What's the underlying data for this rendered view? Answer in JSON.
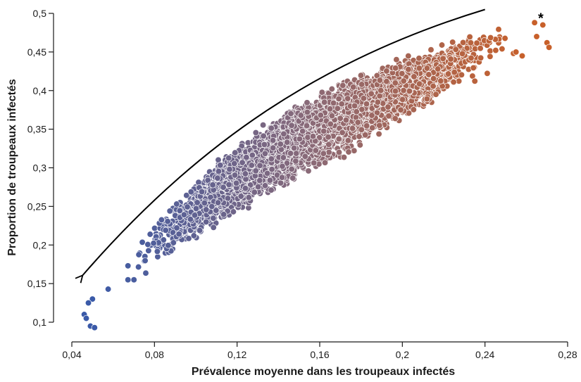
{
  "chart_data": {
    "type": "scatter",
    "xlabel": "Prévalence moyenne dans les troupeaux infectés",
    "ylabel": "Proportion de troupeaux infectés",
    "xlim": [
      0.04,
      0.28
    ],
    "ylim": [
      0.1,
      0.5
    ],
    "x_ticks": [
      "0,04",
      "0,08",
      "0,12",
      "0,16",
      "0,2",
      "0,24",
      "0,28"
    ],
    "x_tick_values": [
      0.04,
      0.08,
      0.12,
      0.16,
      0.2,
      0.24,
      0.28
    ],
    "y_ticks": [
      "0,1",
      "0,15",
      "0,2",
      "0,25",
      "0,3",
      "0,35",
      "0,4",
      "0,45",
      "0,5"
    ],
    "y_tick_values": [
      0.1,
      0.15,
      0.2,
      0.25,
      0.3,
      0.35,
      0.4,
      0.45,
      0.5
    ],
    "annotation": "*",
    "annotation_point": [
      0.267,
      0.497
    ],
    "color_low": "#3a5aa8",
    "color_high": "#c8602a",
    "grid": false,
    "legend": "none",
    "arrow": {
      "direction": "from upper right to lower left, following the point cloud",
      "path": [
        [
          0.24,
          0.505
        ],
        [
          0.16,
          0.44
        ],
        [
          0.1,
          0.33
        ],
        [
          0.045,
          0.16
        ]
      ]
    },
    "cloud": {
      "description": "dense scatter cloud, y increases concavely with x",
      "x_range": [
        0.045,
        0.271
      ],
      "centre": [
        [
          0.05,
          0.125
        ],
        [
          0.06,
          0.155
        ],
        [
          0.08,
          0.205
        ],
        [
          0.1,
          0.25
        ],
        [
          0.12,
          0.29
        ],
        [
          0.14,
          0.325
        ],
        [
          0.16,
          0.355
        ],
        [
          0.18,
          0.385
        ],
        [
          0.2,
          0.41
        ],
        [
          0.22,
          0.435
        ],
        [
          0.24,
          0.46
        ],
        [
          0.26,
          0.475
        ]
      ],
      "upper": [
        [
          0.05,
          0.15
        ],
        [
          0.06,
          0.18
        ],
        [
          0.08,
          0.24
        ],
        [
          0.1,
          0.29
        ],
        [
          0.12,
          0.335
        ],
        [
          0.14,
          0.37
        ],
        [
          0.16,
          0.4
        ],
        [
          0.18,
          0.425
        ],
        [
          0.2,
          0.445
        ],
        [
          0.22,
          0.465
        ],
        [
          0.24,
          0.48
        ],
        [
          0.26,
          0.49
        ]
      ],
      "lower": [
        [
          0.05,
          0.1
        ],
        [
          0.06,
          0.12
        ],
        [
          0.08,
          0.16
        ],
        [
          0.1,
          0.2
        ],
        [
          0.12,
          0.235
        ],
        [
          0.14,
          0.265
        ],
        [
          0.16,
          0.295
        ],
        [
          0.18,
          0.32
        ],
        [
          0.2,
          0.35
        ],
        [
          0.22,
          0.38
        ],
        [
          0.24,
          0.415
        ],
        [
          0.26,
          0.44
        ]
      ],
      "outliers": [
        [
          0.046,
          0.11
        ],
        [
          0.047,
          0.105
        ],
        [
          0.049,
          0.095
        ],
        [
          0.051,
          0.093
        ],
        [
          0.05,
          0.13
        ],
        [
          0.048,
          0.125
        ],
        [
          0.264,
          0.488
        ],
        [
          0.268,
          0.485
        ],
        [
          0.27,
          0.462
        ],
        [
          0.271,
          0.456
        ],
        [
          0.255,
          0.45
        ],
        [
          0.258,
          0.445
        ],
        [
          0.265,
          0.47
        ]
      ]
    }
  }
}
